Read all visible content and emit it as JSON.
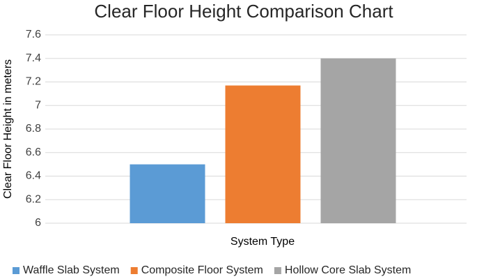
{
  "chart_data": {
    "type": "bar",
    "title": "Clear Floor Height Comparison Chart",
    "x_label": "System Type",
    "y_label": "Clear Floor Height in meters",
    "categories": [
      null
    ],
    "series": [
      {
        "name": "Waffle Slab System",
        "color": "#5b9bd5",
        "values": [
          6.5
        ]
      },
      {
        "name": "Composite Floor System",
        "color": "#ed7d31",
        "values": [
          7.17
        ]
      },
      {
        "name": "Hollow Core Slab System",
        "color": "#a5a5a5",
        "values": [
          7.4
        ]
      }
    ],
    "ylim": [
      6,
      7.6
    ],
    "yticks": [
      6,
      6.2,
      6.4,
      6.6,
      6.8,
      7,
      7.2,
      7.4,
      7.6
    ],
    "grid": true,
    "legend": "bottom"
  }
}
